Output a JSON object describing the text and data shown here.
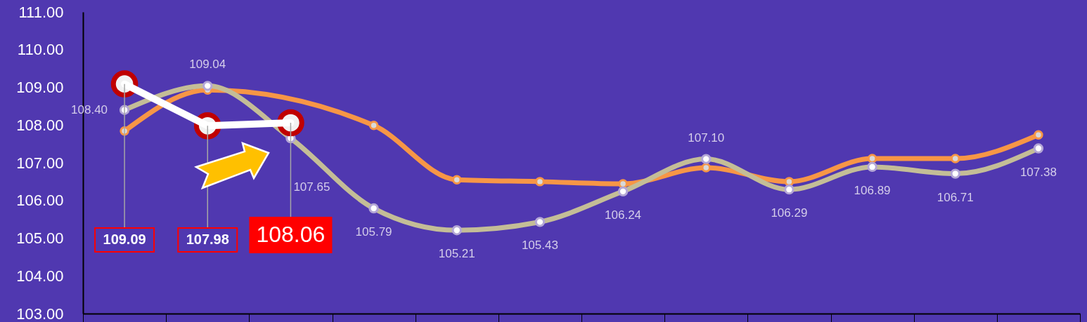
{
  "chart_data": {
    "type": "line",
    "categories": [
      null,
      null,
      null,
      null,
      null,
      null,
      null,
      null,
      null,
      null,
      null,
      null
    ],
    "series": [
      {
        "color": "#f79646",
        "values": [
          107.84,
          108.93,
          null,
          107.99,
          106.55,
          106.5,
          106.44,
          106.87,
          106.5,
          107.11,
          107.11,
          107.74
        ]
      },
      {
        "color": "#c4bd97",
        "values": [
          108.4,
          109.04,
          107.65,
          105.79,
          105.21,
          105.43,
          106.24,
          107.1,
          106.29,
          106.89,
          106.71,
          107.38
        ],
        "value_labels": [
          "108.40",
          "109.04",
          "107.65",
          "105.79",
          "105.21",
          "105.43",
          "106.24",
          "107.10",
          "106.29",
          "106.89",
          "106.71",
          "107.38"
        ]
      },
      {
        "color": "#ffffff",
        "values": [
          109.09,
          107.98,
          108.06,
          null,
          null,
          null,
          null,
          null,
          null,
          null,
          null,
          null
        ],
        "value_labels": [
          "109.09",
          "107.98",
          "108.06",
          null,
          null,
          null,
          null,
          null,
          null,
          null,
          null,
          null
        ]
      }
    ],
    "ylim": [
      103,
      111
    ],
    "yticks": [
      {
        "value": 103,
        "label": "103.00"
      },
      {
        "value": 104,
        "label": "104.00"
      },
      {
        "value": 105,
        "label": "105.00"
      },
      {
        "value": 106,
        "label": "106.00"
      },
      {
        "value": 107,
        "label": "107.00"
      },
      {
        "value": 108,
        "label": "108.00"
      },
      {
        "value": 109,
        "label": "109.00"
      },
      {
        "value": 110,
        "label": "110.00"
      },
      {
        "value": 111,
        "label": "111.00"
      }
    ],
    "grid": false,
    "marker": "circle",
    "line_style": "solid"
  }
}
